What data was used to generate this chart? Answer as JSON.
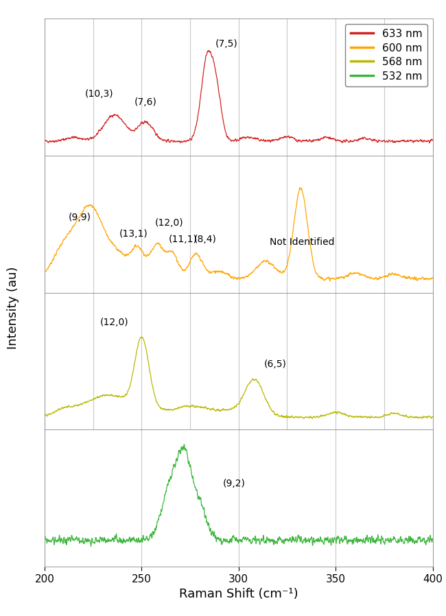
{
  "xlabel": "Raman Shift (cm⁻¹)",
  "ylabel": "Intensity (au)",
  "xlim": [
    200,
    400
  ],
  "x_ticks": [
    200,
    250,
    300,
    350,
    400
  ],
  "colors": {
    "633nm": "#d42020",
    "600nm": "#ffa500",
    "568nm": "#b8b800",
    "532nm": "#3db53d"
  },
  "noise_seed_633": 42,
  "noise_seed_600": 7,
  "noise_seed_568": 13,
  "noise_seed_532": 99,
  "background_color": "#ffffff",
  "grid_color": "#c8c8c8",
  "ann_fontsize": 10,
  "legend_fontsize": 11
}
